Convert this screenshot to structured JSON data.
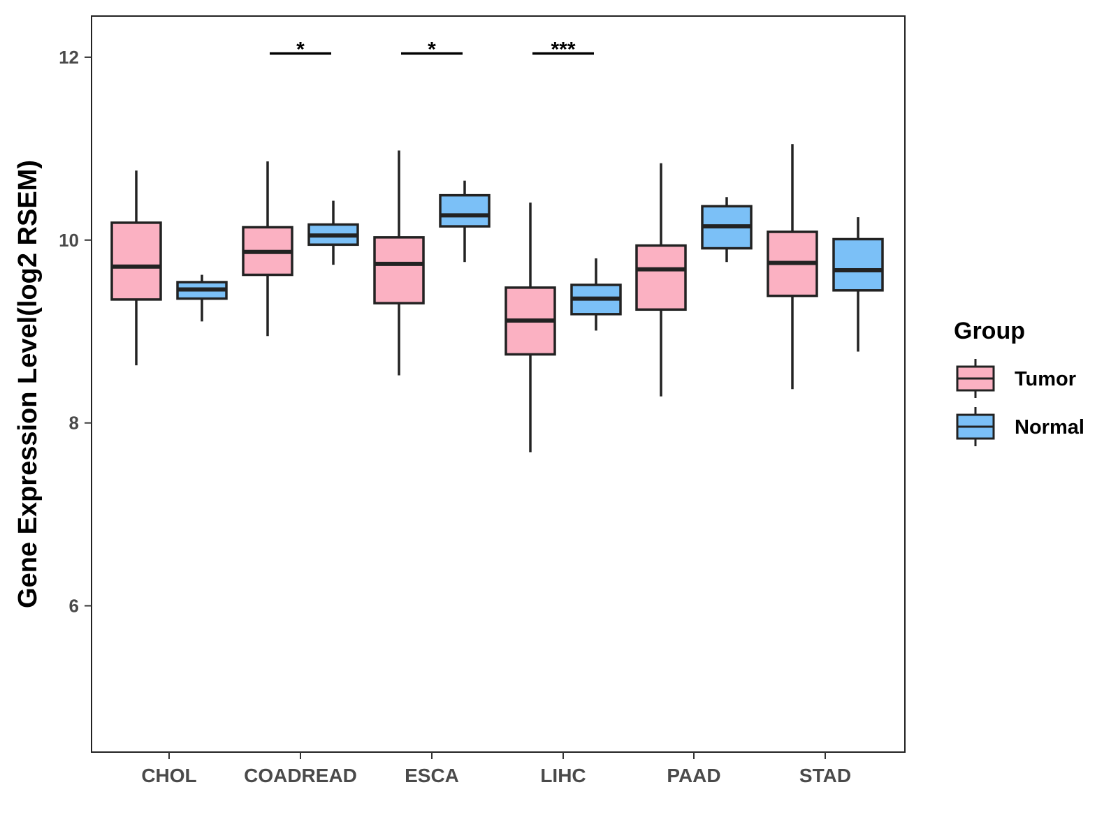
{
  "chart_data": {
    "type": "boxplot",
    "title": "",
    "xlabel": "",
    "ylabel": "Gene Expression Level(log2 RSEM)",
    "ylim": [
      4.4,
      12.45
    ],
    "yticks": [
      6,
      8,
      10,
      12
    ],
    "ytick_labels": [
      "6",
      "8",
      "10",
      "12"
    ],
    "categories": [
      "CHOL",
      "COADREAD",
      "ESCA",
      "LIHC",
      "PAAD",
      "STAD"
    ],
    "legend": {
      "title": "Group",
      "position": "right",
      "entries": [
        {
          "label": "Tumor",
          "color": "#FBB1C2"
        },
        {
          "label": "Normal",
          "color": "#7BC0F7"
        }
      ]
    },
    "series": [
      {
        "name": "Tumor",
        "color": "#FBB1C2",
        "boxes": [
          {
            "category": "CHOL",
            "whisker_low": 8.63,
            "q1": 9.35,
            "median": 9.71,
            "q3": 10.19,
            "whisker_high": 10.76
          },
          {
            "category": "COADREAD",
            "whisker_low": 8.95,
            "q1": 9.62,
            "median": 9.87,
            "q3": 10.14,
            "whisker_high": 10.86
          },
          {
            "category": "ESCA",
            "whisker_low": 8.52,
            "q1": 9.31,
            "median": 9.74,
            "q3": 10.03,
            "whisker_high": 10.98
          },
          {
            "category": "LIHC",
            "whisker_low": 7.68,
            "q1": 8.75,
            "median": 9.12,
            "q3": 9.48,
            "whisker_high": 10.41
          },
          {
            "category": "PAAD",
            "whisker_low": 8.29,
            "q1": 9.24,
            "median": 9.68,
            "q3": 9.94,
            "whisker_high": 10.84
          },
          {
            "category": "STAD",
            "whisker_low": 8.37,
            "q1": 9.39,
            "median": 9.75,
            "q3": 10.09,
            "whisker_high": 11.05
          }
        ]
      },
      {
        "name": "Normal",
        "color": "#7BC0F7",
        "boxes": [
          {
            "category": "CHOL",
            "whisker_low": 9.11,
            "q1": 9.36,
            "median": 9.46,
            "q3": 9.54,
            "whisker_high": 9.62
          },
          {
            "category": "COADREAD",
            "whisker_low": 9.73,
            "q1": 9.95,
            "median": 10.05,
            "q3": 10.17,
            "whisker_high": 10.43
          },
          {
            "category": "ESCA",
            "whisker_low": 9.76,
            "q1": 10.15,
            "median": 10.27,
            "q3": 10.49,
            "whisker_high": 10.65
          },
          {
            "category": "LIHC",
            "whisker_low": 9.01,
            "q1": 9.19,
            "median": 9.36,
            "q3": 9.51,
            "whisker_high": 9.8
          },
          {
            "category": "PAAD",
            "whisker_low": 9.76,
            "q1": 9.91,
            "median": 10.15,
            "q3": 10.37,
            "whisker_high": 10.47
          },
          {
            "category": "STAD",
            "whisker_low": 8.78,
            "q1": 9.45,
            "median": 9.67,
            "q3": 10.01,
            "whisker_high": 10.25
          }
        ]
      }
    ],
    "annotations": [
      {
        "category": "COADREAD",
        "label": "*",
        "y": 12.04
      },
      {
        "category": "ESCA",
        "label": "*",
        "y": 12.04
      },
      {
        "category": "LIHC",
        "label": "***",
        "y": 12.04
      }
    ]
  }
}
